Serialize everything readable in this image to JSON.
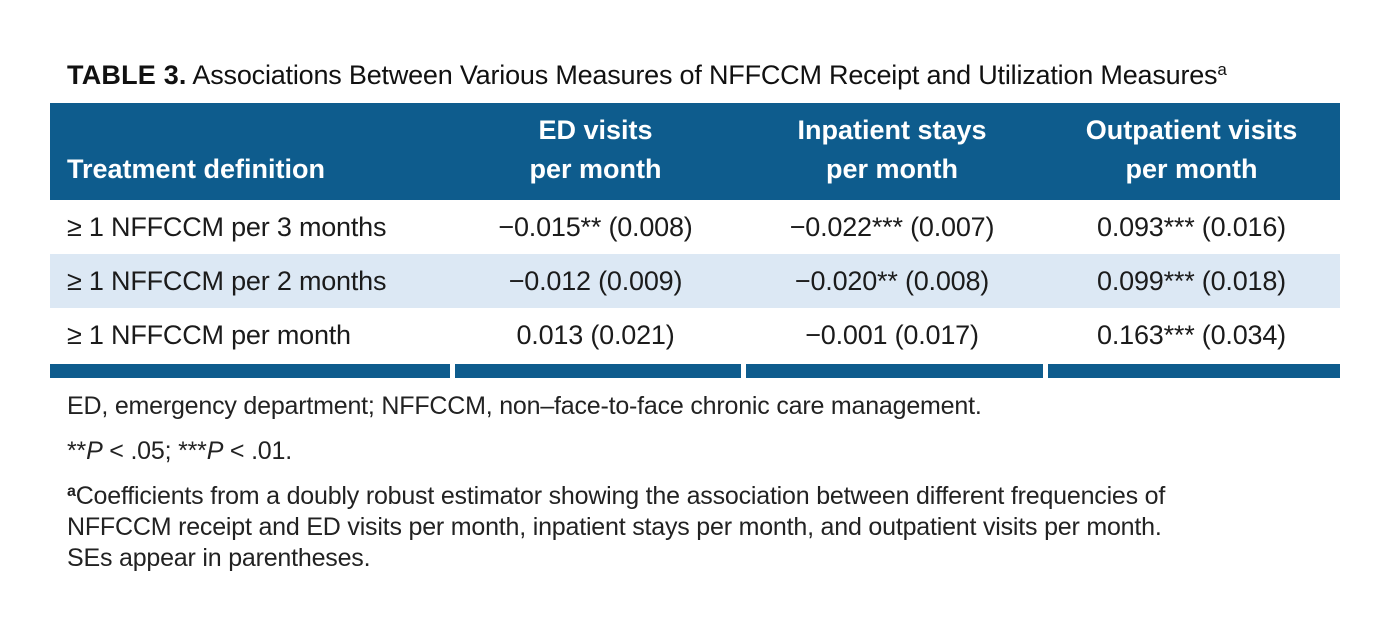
{
  "title": {
    "label": "TABLE 3.",
    "text": " Associations Between Various Measures of NFFCCM Receipt and Utilization Measures",
    "superscript": "a"
  },
  "table": {
    "columns": [
      "Treatment definition",
      "ED visits\nper month",
      "Inpatient stays\nper month",
      "Outpatient visits\nper month"
    ],
    "rows": [
      {
        "definition": "≥ 1 NFFCCM per 3 months",
        "ed_visits": "−0.015** (0.008)",
        "inpatient_stays": "−0.022*** (0.007)",
        "outpatient_visits": "0.093*** (0.016)"
      },
      {
        "definition": "≥ 1 NFFCCM per 2 months",
        "ed_visits": "−0.012 (0.009)",
        "inpatient_stays": "−0.020** (0.008)",
        "outpatient_visits": "0.099*** (0.018)"
      },
      {
        "definition": "≥ 1 NFFCCM per month",
        "ed_visits": "0.013 (0.021)",
        "inpatient_stays": "−0.001 (0.017)",
        "outpatient_visits": "0.163*** (0.034)"
      }
    ]
  },
  "footnotes": {
    "abbreviations": "ED, emergency department; NFFCCM, non–face-to-face chronic care management.",
    "significance": {
      "stars1": "**",
      "p1": "P",
      "rest1": " < .05; ",
      "stars2": "***",
      "p2": "P",
      "rest2": " < .01."
    },
    "note_a": {
      "superscript": "a",
      "text": "Coefficients from a doubly robust estimator showing the association between different frequencies of\nNFFCCM receipt and ED visits per month, inpatient stays per month, and outpatient visits per month.\nSEs appear in parentheses."
    }
  },
  "colors": {
    "header_blue": "#0e5c8d",
    "row_alt_blue": "#dce8f4"
  }
}
